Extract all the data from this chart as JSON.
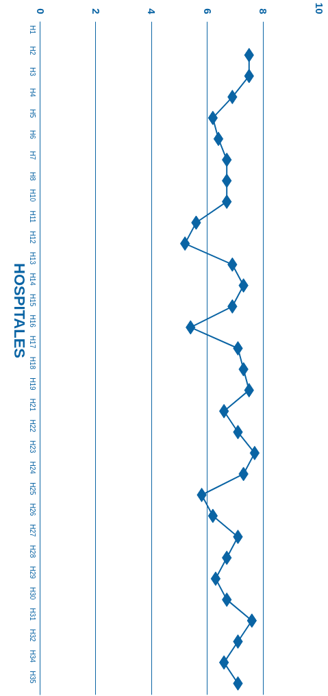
{
  "chart_data": {
    "type": "line",
    "orientation": "horizontal",
    "ylabel": "HOSPITALES",
    "categories": [
      "H1",
      "H2",
      "H3",
      "H4",
      "H5",
      "H6",
      "H7",
      "H8",
      "H10",
      "H11",
      "H12",
      "H13",
      "H14",
      "H15",
      "H16",
      "H17",
      "H18",
      "H19",
      "H21",
      "H22",
      "H23",
      "H24",
      "H25",
      "H26",
      "H27",
      "H28",
      "H29",
      "H30",
      "H31",
      "H32",
      "H34",
      "H35"
    ],
    "series": [
      {
        "color": "#0a64a4",
        "values": [
          null,
          7.5,
          7.5,
          6.9,
          6.2,
          6.4,
          6.7,
          6.7,
          6.7,
          5.6,
          5.2,
          6.9,
          7.3,
          6.9,
          5.4,
          7.1,
          7.3,
          7.5,
          6.6,
          7.1,
          7.7,
          7.3,
          5.8,
          6.2,
          7.1,
          6.7,
          6.3,
          6.7,
          7.6,
          7.1,
          6.6,
          7.1
        ]
      }
    ],
    "xlim": [
      0,
      10
    ],
    "xticks": [
      0,
      2,
      4,
      6,
      8,
      10
    ],
    "grid": "x",
    "marker": "diamond",
    "line_style": "solid"
  }
}
